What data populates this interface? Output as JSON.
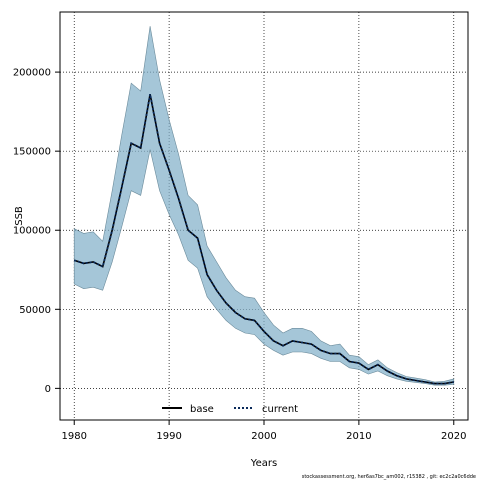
{
  "chart_data": {
    "type": "line",
    "title": "",
    "xlabel": "Years",
    "ylabel": "SSB",
    "xlim": [
      1978.5,
      2021.5
    ],
    "ylim": [
      -20000,
      238000
    ],
    "xticks": [
      1980,
      1990,
      2000,
      2010,
      2020
    ],
    "yticks": [
      0,
      50000,
      100000,
      150000,
      200000
    ],
    "grid": true,
    "legend_placement": "bottom-center",
    "x": [
      1980,
      1981,
      1982,
      1983,
      1984,
      1985,
      1986,
      1987,
      1988,
      1989,
      1990,
      1991,
      1992,
      1993,
      1994,
      1995,
      1996,
      1997,
      1998,
      1999,
      2000,
      2001,
      2002,
      2003,
      2004,
      2005,
      2006,
      2007,
      2008,
      2009,
      2010,
      2011,
      2012,
      2013,
      2014,
      2015,
      2016,
      2017,
      2018,
      2019,
      2020
    ],
    "series": [
      {
        "name": "base",
        "color": "#000000",
        "style": "solid",
        "values": [
          81000,
          79000,
          80000,
          77000,
          100000,
          127000,
          155000,
          152000,
          186000,
          155000,
          138000,
          120000,
          100000,
          95000,
          72000,
          62000,
          54000,
          48000,
          44000,
          43000,
          36000,
          30000,
          27000,
          30000,
          29000,
          28000,
          24000,
          22000,
          22000,
          17000,
          16000,
          12000,
          15000,
          11000,
          8000,
          6000,
          5000,
          4000,
          3000,
          3000,
          4000
        ]
      },
      {
        "name": "current",
        "color": "#0a2a5a",
        "style": "dotted",
        "values": [
          81000,
          79000,
          80000,
          77000,
          100000,
          127000,
          155000,
          152000,
          186000,
          155000,
          138000,
          120000,
          100000,
          95000,
          72000,
          62000,
          54000,
          48000,
          44000,
          43000,
          36000,
          30000,
          27000,
          30000,
          29000,
          28000,
          24000,
          22000,
          22000,
          17000,
          16000,
          12000,
          15000,
          11000,
          8000,
          6000,
          5000,
          4000,
          3000,
          3000,
          4000
        ]
      }
    ],
    "band": {
      "color": "#7faec8",
      "upper": [
        101000,
        98000,
        99000,
        93000,
        125000,
        160000,
        193000,
        188000,
        229000,
        195000,
        170000,
        148000,
        122000,
        116000,
        90000,
        80000,
        70000,
        62000,
        58000,
        57000,
        48000,
        40000,
        35000,
        38000,
        38000,
        36000,
        30000,
        27000,
        28000,
        21000,
        20000,
        15000,
        18000,
        13000,
        10000,
        7500,
        6500,
        5500,
        4000,
        4500,
        6000
      ],
      "lower": [
        66000,
        63000,
        64000,
        62000,
        80000,
        102000,
        125000,
        122000,
        151000,
        125000,
        110000,
        97000,
        81000,
        76000,
        58000,
        50000,
        43000,
        38000,
        35000,
        34000,
        28000,
        24000,
        21000,
        23000,
        23000,
        22000,
        19000,
        17000,
        17000,
        13000,
        12000,
        9000,
        11000,
        8000,
        6000,
        4500,
        3800,
        3000,
        2000,
        2000,
        2500
      ]
    }
  },
  "legend": {
    "base_label": "base",
    "current_label": "current"
  },
  "footer": "stockassessment.org, her6as7bc_am002, r15382 , git: ec2c2a0c6dde"
}
